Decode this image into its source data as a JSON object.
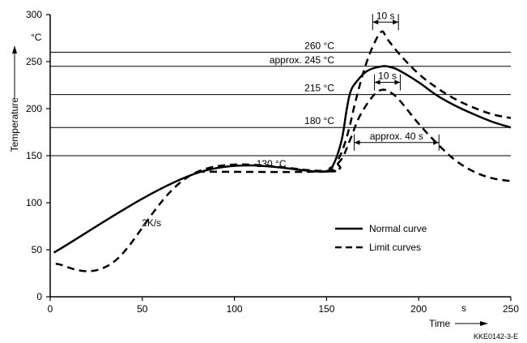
{
  "chart_data": {
    "type": "line",
    "ylabel": "Temperature",
    "xlabel": "Time",
    "x_unit": "s",
    "y_unit": "°C",
    "xlim": [
      0,
      250
    ],
    "ylim": [
      0,
      300
    ],
    "x_ticks": [
      0,
      50,
      100,
      150,
      200,
      250
    ],
    "y_ticks": [
      0,
      50,
      100,
      150,
      200,
      250,
      300
    ],
    "grid": false,
    "legend_position": "bottom-right",
    "reference_lines": [
      {
        "y": 260,
        "label": "260 °C"
      },
      {
        "y": 245,
        "label": "approx. 245 °C"
      },
      {
        "y": 215,
        "label": "215 °C"
      },
      {
        "y": 180,
        "label": "180 °C"
      },
      {
        "y": 150,
        "label": ""
      }
    ],
    "annotations": [
      {
        "text": "130 °C",
        "x": 120,
        "y": 138
      },
      {
        "text": "2K/s",
        "x": 55,
        "y": 75
      }
    ],
    "dimension_labels": [
      {
        "text": "10 s",
        "x_from": 175,
        "x_to": 189,
        "y": 292
      },
      {
        "text": "10 s",
        "x_from": 176,
        "x_to": 190,
        "y": 228
      },
      {
        "text": "approx. 40 s",
        "x_from": 165,
        "x_to": 211,
        "y": 164
      }
    ],
    "series": [
      {
        "name": "Normal curve",
        "style": "solid",
        "x": [
          2,
          82,
          148,
          153,
          158,
          161,
          163,
          166,
          172,
          180,
          185,
          190,
          200,
          210,
          220,
          230,
          240,
          250
        ],
        "y": [
          47,
          133,
          133,
          138,
          165,
          200,
          218,
          228,
          240,
          245,
          244,
          240,
          228,
          214,
          203,
          194,
          186,
          180
        ]
      },
      {
        "name": "Limit curves",
        "style": "dashed",
        "x": [
          3,
          33,
          80,
          150,
          156,
          161,
          166,
          171,
          176,
          180,
          183,
          190,
          200,
          210,
          220,
          230,
          240,
          250
        ],
        "y": [
          35,
          35,
          133,
          134,
          145,
          170,
          210,
          245,
          270,
          282,
          274,
          257,
          237,
          222,
          210,
          201,
          194,
          190
        ]
      },
      {
        "name": "Limit curves",
        "style": "dashed",
        "x": [
          80,
          145,
          152,
          158,
          163,
          168,
          175,
          180,
          185,
          190,
          200,
          210,
          220,
          230,
          240,
          250
        ],
        "y": [
          133,
          133,
          137,
          146,
          168,
          192,
          213,
          220,
          217,
          208,
          184,
          163,
          145,
          133,
          126,
          123
        ]
      }
    ]
  },
  "legend": {
    "normal_label": "Normal curve",
    "limit_label": "Limit curves"
  },
  "footer": {
    "code": "KKE0142-3-E"
  }
}
